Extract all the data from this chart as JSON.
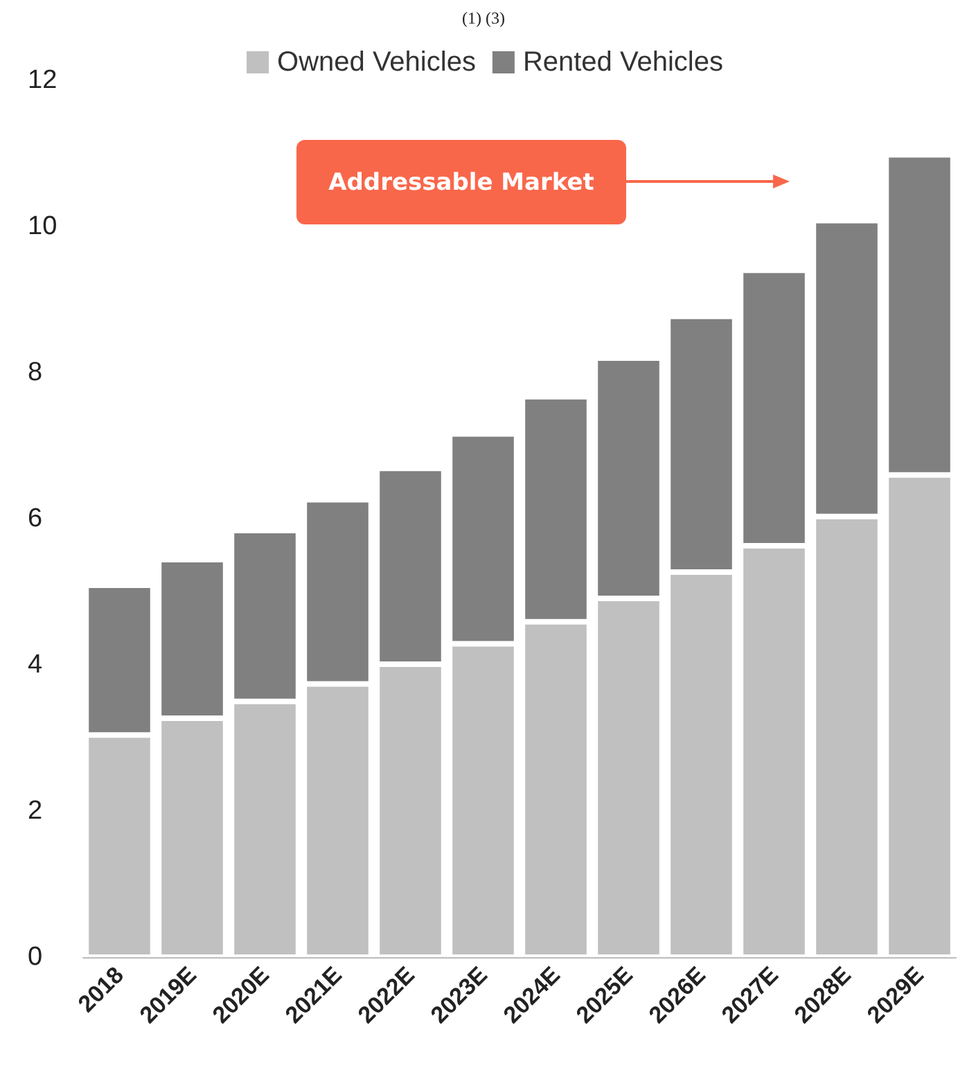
{
  "chart_data": {
    "type": "bar",
    "title": "(1) (3)",
    "stacked": true,
    "legend": "top",
    "grid": false,
    "categories": [
      "2018",
      "2019E",
      "2020E",
      "2021E",
      "2022E",
      "2023E",
      "2024E",
      "2025E",
      "2026E",
      "2027E",
      "2028E",
      "2029E"
    ],
    "series": [
      {
        "name": "Owned Vehicles",
        "color": "#c0c0c0",
        "values": [
          3.04,
          3.27,
          3.5,
          3.74,
          4.01,
          4.29,
          4.59,
          4.91,
          5.27,
          5.63,
          6.03,
          6.6
        ]
      },
      {
        "name": "Rented Vehicles",
        "color": "#808080",
        "values": [
          2.05,
          2.17,
          2.34,
          2.52,
          2.68,
          2.87,
          3.08,
          3.29,
          3.5,
          3.77,
          4.05,
          4.38
        ]
      }
    ],
    "ylim": [
      0,
      12
    ],
    "yticks": [
      0,
      2,
      4,
      6,
      8,
      10,
      12
    ],
    "annotations": [
      "Addressable Market"
    ]
  }
}
